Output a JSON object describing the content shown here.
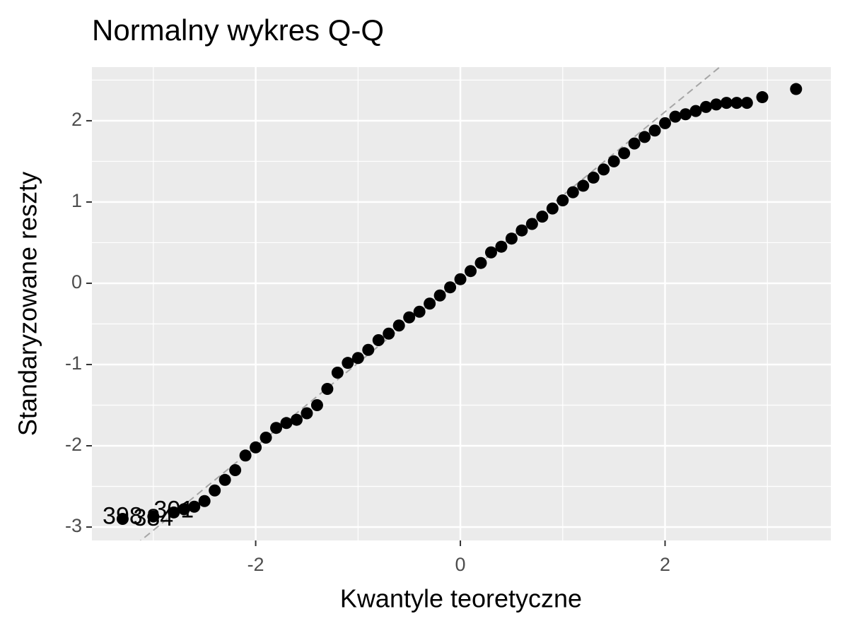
{
  "chart_data": {
    "type": "scatter",
    "title": "Normalny wykres Q-Q",
    "x_label": "Kwantyle teoretyczne",
    "y_label": "Standaryzowane reszty",
    "xlim": [
      -3.6,
      3.62
    ],
    "ylim": [
      -3.165,
      2.66
    ],
    "xticks": [
      -2,
      0,
      2
    ],
    "yticks": [
      -3,
      -2,
      -1,
      0,
      1,
      2
    ],
    "xminor": [
      -3,
      -1,
      1,
      3
    ],
    "yminor": [
      -2.5,
      -1.5,
      -0.5,
      0.5,
      1.5,
      2.5
    ],
    "grid": true,
    "color": "#000000",
    "reference_line": {
      "slope": 1.03,
      "intercept": 0.05,
      "color": "#a6a6a6"
    },
    "x": [
      -3.3,
      -3.0,
      -2.8,
      -2.7,
      -2.6,
      -2.5,
      -2.4,
      -2.3,
      -2.2,
      -2.1,
      -2.0,
      -1.9,
      -1.8,
      -1.7,
      -1.6,
      -1.5,
      -1.4,
      -1.3,
      -1.2,
      -1.1,
      -1.0,
      -0.9,
      -0.8,
      -0.7,
      -0.6,
      -0.5,
      -0.4,
      -0.3,
      -0.2,
      -0.1,
      0,
      0.1,
      0.2,
      0.3,
      0.4,
      0.5,
      0.6,
      0.7,
      0.8,
      0.9,
      1.0,
      1.1,
      1.2,
      1.3,
      1.4,
      1.5,
      1.6,
      1.7,
      1.8,
      1.9,
      2.0,
      2.1,
      2.2,
      2.3,
      2.4,
      2.5,
      2.6,
      2.7,
      2.8,
      2.95,
      3.28
    ],
    "values": [
      -2.9,
      -2.87,
      -2.82,
      -2.78,
      -2.75,
      -2.68,
      -2.55,
      -2.42,
      -2.3,
      -2.12,
      -2.02,
      -1.9,
      -1.78,
      -1.72,
      -1.68,
      -1.6,
      -1.5,
      -1.3,
      -1.1,
      -0.98,
      -0.92,
      -0.82,
      -0.7,
      -0.62,
      -0.52,
      -0.42,
      -0.35,
      -0.25,
      -0.15,
      -0.05,
      0.05,
      0.15,
      0.25,
      0.38,
      0.45,
      0.55,
      0.65,
      0.73,
      0.82,
      0.92,
      1.02,
      1.12,
      1.2,
      1.3,
      1.4,
      1.5,
      1.6,
      1.72,
      1.8,
      1.88,
      1.97,
      2.05,
      2.08,
      2.12,
      2.17,
      2.2,
      2.22,
      2.22,
      2.22,
      2.29,
      2.39
    ],
    "labels": [
      "398",
      "384",
      "301",
      null,
      null,
      null,
      null,
      null,
      null,
      null,
      null,
      null,
      null,
      null,
      null,
      null,
      null,
      null,
      null,
      null,
      null,
      null,
      null,
      null,
      null,
      null,
      null,
      null,
      null,
      null,
      null,
      null,
      null,
      null,
      null,
      null,
      null,
      null,
      null,
      null,
      null,
      null,
      null,
      null,
      null,
      null,
      null,
      null,
      null,
      null,
      null,
      null,
      null,
      null,
      null,
      null,
      null,
      null,
      null,
      null,
      null
    ]
  }
}
